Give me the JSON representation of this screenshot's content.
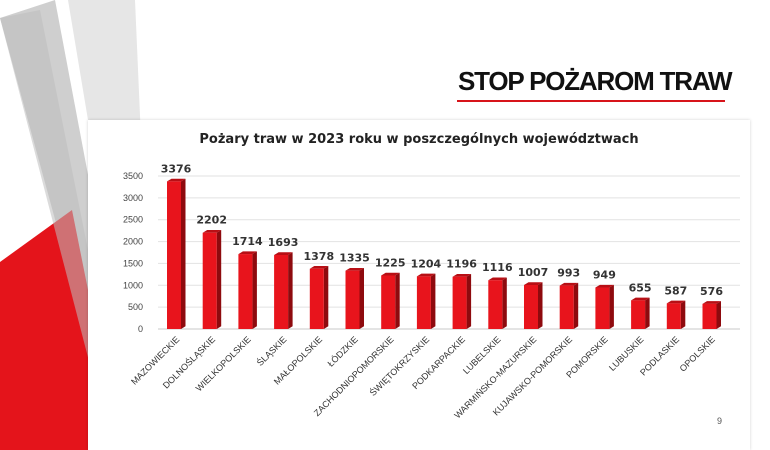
{
  "slide": {
    "title": "STOP POŻAROM TRAW",
    "page_number": "9"
  },
  "colors": {
    "accent_red": "#e4141b",
    "bar_front": "#e8141c",
    "bar_side": "#8e0a0e",
    "bar_top": "#b80f15",
    "decor_gray": "#c8c8c8"
  },
  "chart_data": {
    "type": "bar",
    "title": "Pożary traw w 2023 roku w poszczególnych województwach",
    "categories": [
      "MAZOWIECKIE",
      "DOLNOŚLĄSKIE",
      "WIELKOPOLSKIE",
      "ŚLĄSKIE",
      "MAŁOPOLSKIE",
      "ŁÓDZKIE",
      "ZACHODNIOPOMORSKIE",
      "ŚWIĘTOKRZYSKIE",
      "PODKARPACKIE",
      "LUBELSKIE",
      "WARMIŃSKO-MAZURSKIE",
      "KUJAWSKO-POMORSKIE",
      "POMORSKIE",
      "LUBUSKIE",
      "PODLASKIE",
      "OPOLSKIE"
    ],
    "values": [
      3376,
      2202,
      1714,
      1693,
      1378,
      1335,
      1225,
      1204,
      1196,
      1116,
      1007,
      993,
      949,
      655,
      587,
      576
    ],
    "yticks": [
      0,
      500,
      1000,
      1500,
      2000,
      2500,
      3000,
      3500
    ],
    "ylim": [
      0,
      3500
    ],
    "grid": true,
    "legend": "none"
  }
}
